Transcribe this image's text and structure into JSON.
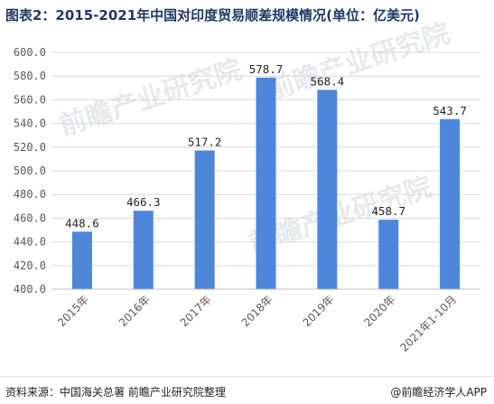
{
  "chart_data": {
    "type": "bar",
    "title": "图表2：2015-2021年中国对印度贸易顺差规模情况(单位：亿美元)",
    "categories": [
      "2015年",
      "2016年",
      "2017年",
      "2018年",
      "2019年",
      "2020年",
      "2021年1-10月"
    ],
    "values": [
      448.6,
      466.3,
      517.2,
      578.7,
      568.4,
      458.7,
      543.7
    ],
    "value_labels": [
      "448.6",
      "466.3",
      "517.2",
      "578.7",
      "568.4",
      "458.7",
      "543.7"
    ],
    "yticks": [
      "400.0",
      "420.0",
      "440.0",
      "460.0",
      "480.0",
      "500.0",
      "520.0",
      "540.0",
      "560.0",
      "580.0",
      "600.0"
    ],
    "ylim": [
      400,
      600
    ],
    "bar_color": "#4e87da",
    "grid": true,
    "xlabel": "",
    "ylabel": ""
  },
  "watermark": "前瞻产业研究院",
  "footer": {
    "source": "资料来源：中国海关总署 前瞻产业研究院整理",
    "brand": "@前瞻经济学人APP"
  }
}
